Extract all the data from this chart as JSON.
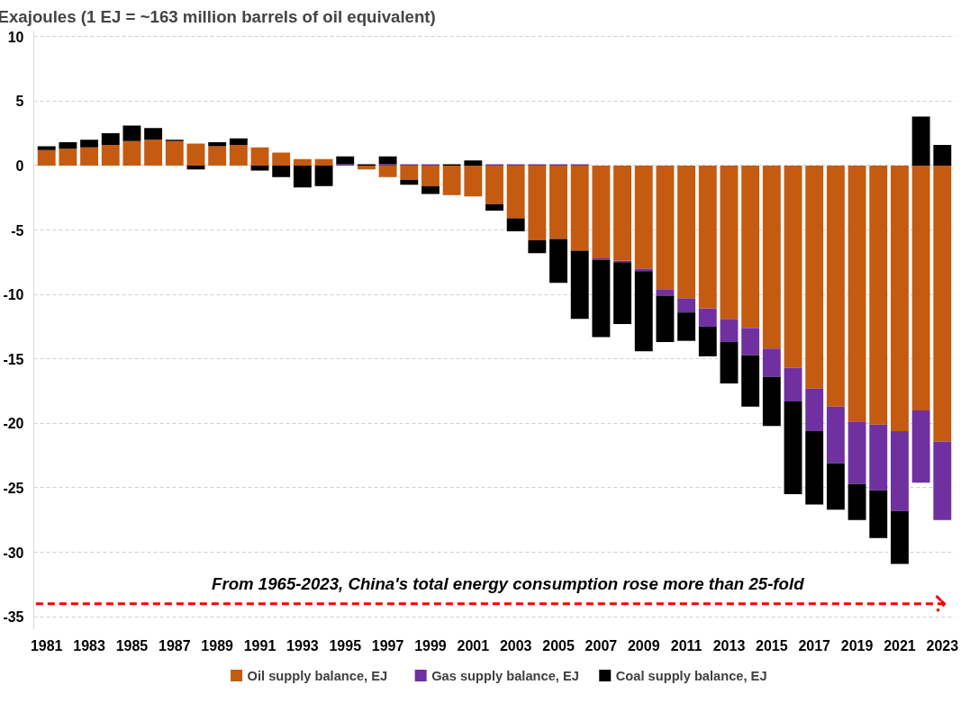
{
  "chart_data": {
    "type": "bar",
    "stacked": true,
    "ylabel": "Exajoules  (1 EJ = ~163 million barrels of oil equivalent)",
    "categories": [
      "1981",
      null,
      "1983",
      null,
      "1985",
      null,
      "1987",
      null,
      "1989",
      null,
      "1991",
      null,
      "1993",
      null,
      "1995",
      null,
      "1997",
      null,
      "1999",
      null,
      "2001",
      null,
      "2003",
      null,
      "2005",
      null,
      "2007",
      null,
      "2009",
      null,
      "2011",
      null,
      "2013",
      null,
      "2015",
      null,
      "2017",
      null,
      "2019",
      null,
      "2021",
      null,
      "2023"
    ],
    "series": [
      {
        "name": "Oil supply balance, EJ",
        "color": "#c55a11",
        "values": [
          1.2,
          1.3,
          1.4,
          1.6,
          1.9,
          2.0,
          1.9,
          1.7,
          1.5,
          1.6,
          1.4,
          1.0,
          0.5,
          0.5,
          0.0,
          -0.3,
          -0.9,
          -1.1,
          -1.6,
          -2.3,
          -2.4,
          -3.0,
          -4.1,
          -5.8,
          -5.7,
          -6.6,
          -7.2,
          -7.4,
          -8.0,
          -9.6,
          -10.3,
          -11.1,
          -11.9,
          -12.6,
          -14.2,
          -15.7,
          -17.3,
          -18.7,
          -19.9,
          -20.1,
          -20.6,
          -19.0,
          -21.4
        ]
      },
      {
        "name": "Gas supply balance, EJ",
        "color": "#7030a0",
        "values": [
          null,
          null,
          null,
          null,
          null,
          null,
          null,
          null,
          null,
          null,
          null,
          null,
          null,
          null,
          0.1,
          null,
          0.1,
          0.1,
          0.1,
          null,
          null,
          0.1,
          0.1,
          0.1,
          0.1,
          0.1,
          -0.1,
          -0.1,
          -0.2,
          -0.5,
          -1.1,
          -1.4,
          -1.8,
          -2.1,
          -2.2,
          -2.6,
          -3.3,
          -4.4,
          -4.8,
          -5.1,
          -6.2,
          -5.6,
          -6.1
        ]
      },
      {
        "name": "Coal supply balance, EJ",
        "color": "#000000",
        "values": [
          0.3,
          0.5,
          0.6,
          0.9,
          1.2,
          0.9,
          0.1,
          -0.3,
          0.3,
          0.5,
          -0.4,
          -0.9,
          -1.7,
          -1.6,
          0.6,
          0.1,
          0.6,
          -0.4,
          -0.6,
          0.1,
          0.4,
          -0.5,
          -1.0,
          -1.0,
          -3.4,
          -5.3,
          -6.0,
          -4.8,
          -6.2,
          -3.6,
          -2.2,
          -2.3,
          -3.2,
          -4.0,
          -3.8,
          -7.2,
          -5.7,
          -3.6,
          -2.8,
          -3.7,
          -4.1,
          3.8,
          1.6
        ]
      }
    ],
    "ylim": [
      -36,
      10.5
    ],
    "yticks": [
      -35,
      -30,
      -25,
      -20,
      -15,
      -10,
      -5,
      0,
      5,
      10
    ],
    "grid": "y",
    "legend": "bottom",
    "ref_lines": [
      {
        "axis": "y",
        "value": -34,
        "label": "From 1965-2023, China's total energy consumption rose more than 25-fold",
        "color": "#ff0000",
        "line_style": "dashed"
      }
    ]
  }
}
